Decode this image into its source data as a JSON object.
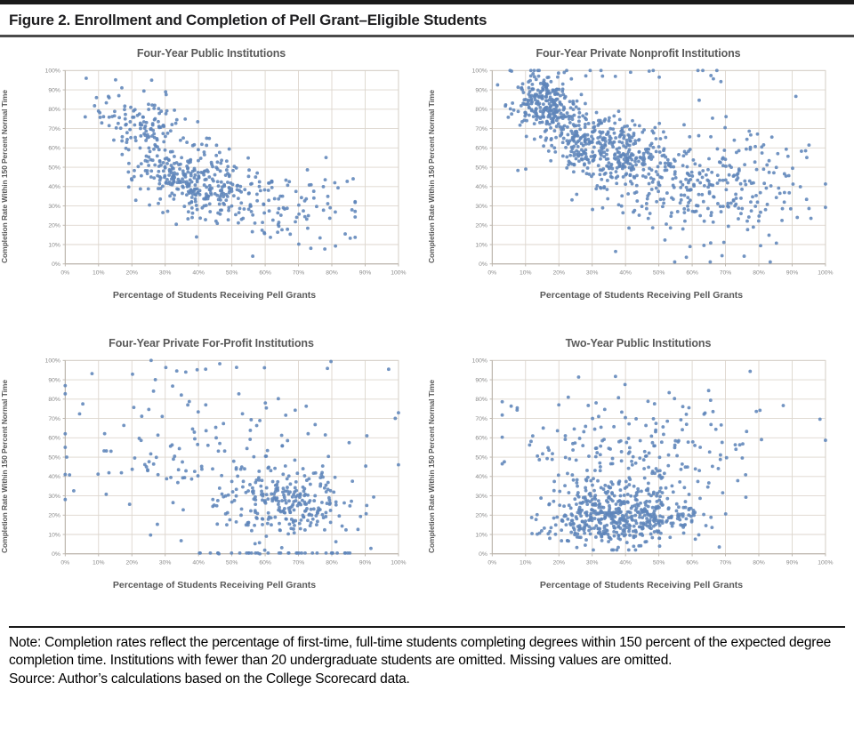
{
  "figure": {
    "title": "Figure 2. Enrollment and Completion of Pell Grant–Eligible Students",
    "note": "Note: Completion rates reflect the percentage of first-time, full-time students completing degrees within 150 percent of the expected degree completion time. Institutions with fewer than 20 undergraduate students are omitted. Missing values are omitted.",
    "source": "Source: Author’s calculations based on the College Scorecard data."
  },
  "axes": {
    "tick_labels": [
      "0%",
      "10%",
      "20%",
      "30%",
      "40%",
      "50%",
      "60%",
      "70%",
      "80%",
      "90%",
      "100%"
    ],
    "tick_values": [
      0,
      10,
      20,
      30,
      40,
      50,
      60,
      70,
      80,
      90,
      100
    ]
  },
  "style": {
    "point_color": "#5f85ba",
    "point_radius": 2.1,
    "point_opacity": 0.88,
    "grid_color": "#ddd6ce",
    "border_color": "#d4cec6",
    "axis_color": "#b8b1a8",
    "tick_color": "#8a8a8a"
  },
  "chart_data": [
    {
      "id": "four-year-public",
      "type": "scatter",
      "title": "Four-Year Public Institutions",
      "xlabel": "Percentage of Students Receiving Pell Grants",
      "ylabel": "Completion Rate Within 150 Percent Normal Time",
      "xlim": [
        0,
        100
      ],
      "ylim": [
        0,
        100
      ],
      "grid": true,
      "legend": "none",
      "seed": 7,
      "distribution": {
        "clusters": [
          {
            "n": 300,
            "cx": 38,
            "cy": 44,
            "sx": 9,
            "sy": 10,
            "corr": -0.35
          },
          {
            "n": 110,
            "cx": 23,
            "cy": 74,
            "sx": 6.5,
            "sy": 9,
            "corr": -0.4
          },
          {
            "n": 105,
            "cx": 55,
            "cy": 33,
            "sx": 13,
            "sy": 10,
            "corr": -0.2
          },
          {
            "n": 30,
            "cx": 74,
            "cy": 31,
            "sx": 9,
            "sy": 11,
            "corr": 0
          }
        ],
        "edge_rows": [],
        "clip": {
          "x": [
            6,
            87
          ],
          "y": [
            4,
            96
          ]
        }
      }
    },
    {
      "id": "four-year-private-nonprofit",
      "type": "scatter",
      "title": "Four-Year Private Nonprofit Institutions",
      "xlabel": "Percentage of Students Receiving Pell Grants",
      "ylabel": "Completion Rate Within 150 Percent Normal Time",
      "xlim": [
        0,
        100
      ],
      "ylim": [
        0,
        100
      ],
      "grid": true,
      "legend": "none",
      "seed": 13,
      "distribution": {
        "clusters": [
          {
            "n": 230,
            "cx": 15,
            "cy": 84,
            "sx": 5,
            "sy": 8,
            "corr": -0.35
          },
          {
            "n": 390,
            "cx": 33,
            "cy": 60,
            "sx": 9.5,
            "sy": 10,
            "corr": -0.45
          },
          {
            "n": 210,
            "cx": 55,
            "cy": 43,
            "sx": 14,
            "sy": 13,
            "corr": -0.25
          },
          {
            "n": 130,
            "cx": 77,
            "cy": 40,
            "sx": 14,
            "sy": 20,
            "corr": 0
          },
          {
            "n": 18,
            "cx": 50,
            "cy": 99,
            "sx": 26,
            "sy": 4,
            "corr": 0
          }
        ],
        "edge_rows": [],
        "clip": {
          "x": [
            1,
            100
          ],
          "y": [
            1,
            100
          ]
        }
      }
    },
    {
      "id": "four-year-private-for-profit",
      "type": "scatter",
      "title": "Four-Year Private For-Profit Institutions",
      "xlabel": "Percentage of Students Receiving Pell Grants",
      "ylabel": "Completion Rate Within 150 Percent Normal Time",
      "xlim": [
        0,
        100
      ],
      "ylim": [
        0,
        100
      ],
      "grid": true,
      "legend": "none",
      "seed": 21,
      "distribution": {
        "clusters": [
          {
            "n": 225,
            "cx": 67,
            "cy": 26,
            "sx": 10,
            "sy": 9,
            "corr": -0.05
          },
          {
            "n": 125,
            "cx": 54,
            "cy": 47,
            "sx": 20,
            "sy": 19,
            "corr": 0
          },
          {
            "n": 45,
            "cx": 24,
            "cy": 52,
            "sx": 14,
            "sy": 24,
            "corr": 0
          },
          {
            "n": 12,
            "cx": 45,
            "cy": 97,
            "sx": 27,
            "sy": 3,
            "corr": 0
          }
        ],
        "edge_rows": [
          {
            "n": 34,
            "y": 0.4,
            "x_range": [
              38,
              86
            ]
          }
        ],
        "clip": {
          "x": [
            0,
            100
          ],
          "y": [
            0,
            100
          ]
        }
      }
    },
    {
      "id": "two-year-public",
      "type": "scatter",
      "title": "Two-Year Public Institutions",
      "xlabel": "Percentage of Students Receiving Pell Grants",
      "ylabel": "Completion Rate Within 150 Percent Normal Time",
      "xlim": [
        0,
        100
      ],
      "ylim": [
        0,
        100
      ],
      "grid": true,
      "legend": "none",
      "seed": 42,
      "distribution": {
        "clusters": [
          {
            "n": 480,
            "cx": 38,
            "cy": 19,
            "sx": 11.5,
            "sy": 7,
            "corr": 0.05
          },
          {
            "n": 185,
            "cx": 38,
            "cy": 44,
            "sx": 17,
            "sy": 14,
            "corr": 0
          },
          {
            "n": 62,
            "cx": 52,
            "cy": 70,
            "sx": 26,
            "sy": 13,
            "corr": 0
          }
        ],
        "edge_rows": [],
        "clip": {
          "x": [
            3,
            100
          ],
          "y": [
            2,
            97
          ]
        }
      }
    }
  ]
}
